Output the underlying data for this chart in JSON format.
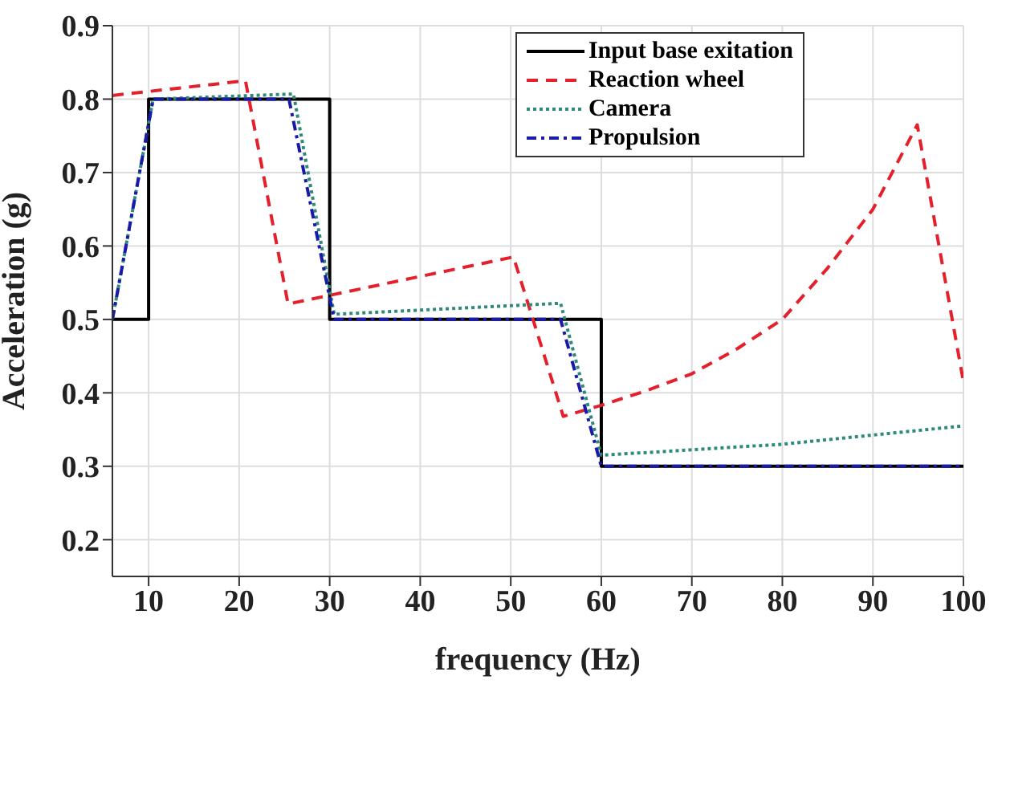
{
  "chart_data": {
    "type": "line",
    "xlabel": "frequency (Hz)",
    "ylabel": "Acceleration (g)",
    "xlim": [
      6,
      100
    ],
    "xticks": [
      10,
      20,
      30,
      40,
      50,
      60,
      70,
      80,
      90,
      100
    ],
    "ylim": [
      0.15,
      0.9
    ],
    "yticks": [
      0.2,
      0.3,
      0.4,
      0.5,
      0.6,
      0.7,
      0.8,
      0.9
    ],
    "grid": true,
    "legend": "top right",
    "marker": "none",
    "series": [
      {
        "name": "Input base exitation",
        "color": "#000000",
        "line_style": "solid",
        "x": [
          6,
          10,
          10,
          30,
          30,
          60,
          60,
          100
        ],
        "values": [
          0.5,
          0.5,
          0.8,
          0.8,
          0.5,
          0.5,
          0.3,
          0.3
        ]
      },
      {
        "name": "Reaction wheel",
        "color": "#e3202c",
        "line_style": "dashed",
        "x": [
          6,
          20.7,
          25.4,
          50.3,
          55.8,
          60,
          65,
          70,
          75,
          80,
          85,
          90,
          94.9,
          100
        ],
        "values": [
          0.805,
          0.825,
          0.521,
          0.585,
          0.368,
          0.383,
          0.403,
          0.426,
          0.46,
          0.5,
          0.57,
          0.65,
          0.765,
          0.415
        ]
      },
      {
        "name": "Camera",
        "color": "#2e8b7a",
        "line_style": "dotted",
        "x": [
          6,
          10.5,
          26,
          30.5,
          55.5,
          60,
          80,
          100
        ],
        "values": [
          0.5,
          0.8,
          0.807,
          0.507,
          0.522,
          0.315,
          0.33,
          0.355
        ]
      },
      {
        "name": "Propulsion",
        "color": "#1a1aa8",
        "line_style": "dashdot",
        "x": [
          6,
          10.5,
          25.5,
          30.5,
          55.5,
          60,
          100
        ],
        "values": [
          0.5,
          0.8,
          0.8,
          0.5,
          0.5,
          0.3,
          0.3
        ]
      }
    ]
  }
}
